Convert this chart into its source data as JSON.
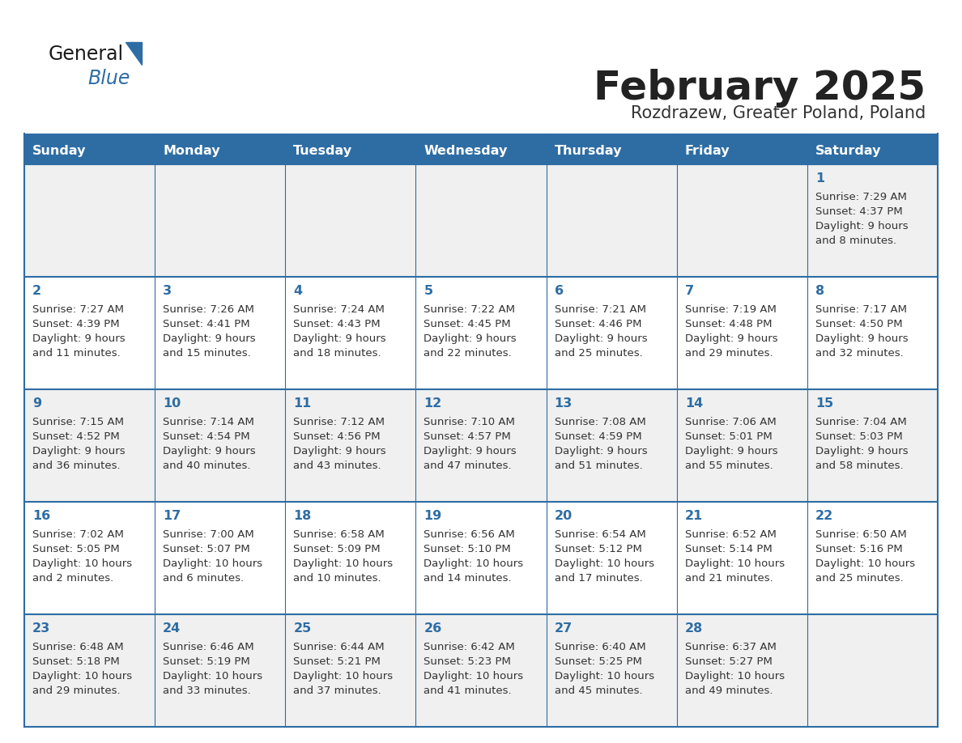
{
  "title": "February 2025",
  "subtitle": "Rozdrazew, Greater Poland, Poland",
  "header_bg": "#2E6DA4",
  "header_text": "#FFFFFF",
  "row_bg_even": "#F0F0F0",
  "row_bg_odd": "#FFFFFF",
  "border_color": "#2E6DA4",
  "day_headers": [
    "Sunday",
    "Monday",
    "Tuesday",
    "Wednesday",
    "Thursday",
    "Friday",
    "Saturday"
  ],
  "title_color": "#222222",
  "subtitle_color": "#333333",
  "cell_text_color": "#333333",
  "day_num_color": "#2E6DA4",
  "calendar": [
    [
      null,
      null,
      null,
      null,
      null,
      null,
      1
    ],
    [
      2,
      3,
      4,
      5,
      6,
      7,
      8
    ],
    [
      9,
      10,
      11,
      12,
      13,
      14,
      15
    ],
    [
      16,
      17,
      18,
      19,
      20,
      21,
      22
    ],
    [
      23,
      24,
      25,
      26,
      27,
      28,
      null
    ]
  ],
  "sunrise": {
    "1": "7:29 AM",
    "2": "7:27 AM",
    "3": "7:26 AM",
    "4": "7:24 AM",
    "5": "7:22 AM",
    "6": "7:21 AM",
    "7": "7:19 AM",
    "8": "7:17 AM",
    "9": "7:15 AM",
    "10": "7:14 AM",
    "11": "7:12 AM",
    "12": "7:10 AM",
    "13": "7:08 AM",
    "14": "7:06 AM",
    "15": "7:04 AM",
    "16": "7:02 AM",
    "17": "7:00 AM",
    "18": "6:58 AM",
    "19": "6:56 AM",
    "20": "6:54 AM",
    "21": "6:52 AM",
    "22": "6:50 AM",
    "23": "6:48 AM",
    "24": "6:46 AM",
    "25": "6:44 AM",
    "26": "6:42 AM",
    "27": "6:40 AM",
    "28": "6:37 AM"
  },
  "sunset": {
    "1": "4:37 PM",
    "2": "4:39 PM",
    "3": "4:41 PM",
    "4": "4:43 PM",
    "5": "4:45 PM",
    "6": "4:46 PM",
    "7": "4:48 PM",
    "8": "4:50 PM",
    "9": "4:52 PM",
    "10": "4:54 PM",
    "11": "4:56 PM",
    "12": "4:57 PM",
    "13": "4:59 PM",
    "14": "5:01 PM",
    "15": "5:03 PM",
    "16": "5:05 PM",
    "17": "5:07 PM",
    "18": "5:09 PM",
    "19": "5:10 PM",
    "20": "5:12 PM",
    "21": "5:14 PM",
    "22": "5:16 PM",
    "23": "5:18 PM",
    "24": "5:19 PM",
    "25": "5:21 PM",
    "26": "5:23 PM",
    "27": "5:25 PM",
    "28": "5:27 PM"
  },
  "daylight": {
    "1": [
      "9 hours",
      "and 8 minutes."
    ],
    "2": [
      "9 hours",
      "and 11 minutes."
    ],
    "3": [
      "9 hours",
      "and 15 minutes."
    ],
    "4": [
      "9 hours",
      "and 18 minutes."
    ],
    "5": [
      "9 hours",
      "and 22 minutes."
    ],
    "6": [
      "9 hours",
      "and 25 minutes."
    ],
    "7": [
      "9 hours",
      "and 29 minutes."
    ],
    "8": [
      "9 hours",
      "and 32 minutes."
    ],
    "9": [
      "9 hours",
      "and 36 minutes."
    ],
    "10": [
      "9 hours",
      "and 40 minutes."
    ],
    "11": [
      "9 hours",
      "and 43 minutes."
    ],
    "12": [
      "9 hours",
      "and 47 minutes."
    ],
    "13": [
      "9 hours",
      "and 51 minutes."
    ],
    "14": [
      "9 hours",
      "and 55 minutes."
    ],
    "15": [
      "9 hours",
      "and 58 minutes."
    ],
    "16": [
      "10 hours",
      "and 2 minutes."
    ],
    "17": [
      "10 hours",
      "and 6 minutes."
    ],
    "18": [
      "10 hours",
      "and 10 minutes."
    ],
    "19": [
      "10 hours",
      "and 14 minutes."
    ],
    "20": [
      "10 hours",
      "and 17 minutes."
    ],
    "21": [
      "10 hours",
      "and 21 minutes."
    ],
    "22": [
      "10 hours",
      "and 25 minutes."
    ],
    "23": [
      "10 hours",
      "and 29 minutes."
    ],
    "24": [
      "10 hours",
      "and 33 minutes."
    ],
    "25": [
      "10 hours",
      "and 37 minutes."
    ],
    "26": [
      "10 hours",
      "and 41 minutes."
    ],
    "27": [
      "10 hours",
      "and 45 minutes."
    ],
    "28": [
      "10 hours",
      "and 49 minutes."
    ]
  },
  "fig_width": 11.88,
  "fig_height": 9.18,
  "dpi": 100
}
